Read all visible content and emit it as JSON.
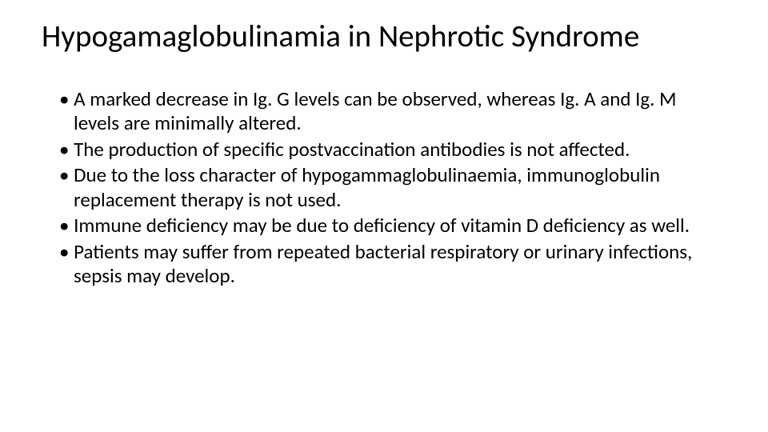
{
  "slide": {
    "background_color": "#ffffff",
    "text_color": "#000000",
    "font_family": "Calibri",
    "title": {
      "text": "Hypogamaglobulinamia in Nephrotic Syndrome",
      "fontsize": 39,
      "weight": 400
    },
    "bullets": {
      "fontsize": 25,
      "marker": "•",
      "items": [
        "A marked decrease in Ig. G levels can be observed, whereas Ig. A and Ig. M levels are minimally altered.",
        "The production of specific postvaccination antibodies is not affected.",
        "Due to the loss character of hypogammaglobulinaemia, immunoglobulin replacement therapy is not used.",
        "Immune deficiency may be due to deficiency of vitamin D deficiency as well.",
        "Patients may suffer from repeated bacterial respiratory or urinary infections, sepsis may develop."
      ]
    }
  }
}
